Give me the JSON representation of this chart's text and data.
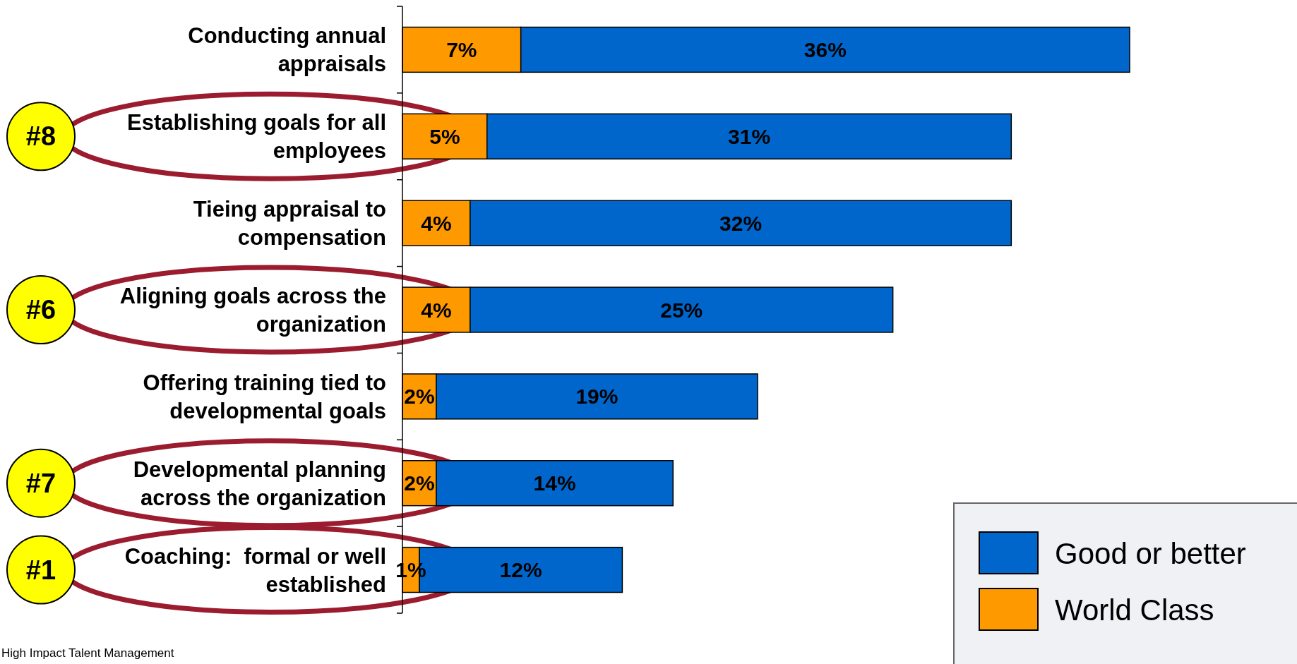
{
  "chart_data": {
    "type": "bar",
    "orientation": "horizontal",
    "stacked": true,
    "legend": "bottom right",
    "categories": [
      "Conducting annual appraisals",
      "Establishing goals for all employees",
      "Tieing appraisal to compensation",
      "Aligning goals across the organization",
      "Offering training tied to developmental goals",
      "Developmental planning across the organization",
      "Coaching:  formal or well established"
    ],
    "series": [
      {
        "name": "World Class",
        "color": "#ff9900",
        "values": [
          7,
          5,
          4,
          4,
          2,
          2,
          1
        ],
        "value_labels": [
          "7%",
          "5%",
          "4%",
          "4%",
          "2%",
          "2%",
          "1%"
        ]
      },
      {
        "name": "Good or better",
        "color": "#0066cc",
        "values": [
          36,
          31,
          32,
          25,
          19,
          14,
          12
        ],
        "value_labels": [
          "36%",
          "31%",
          "32%",
          "25%",
          "19%",
          "14%",
          "12%"
        ]
      }
    ],
    "annotations": [
      "#8",
      "#6",
      "#7",
      "#1",
      "High Impact Talent Management"
    ]
  }
}
